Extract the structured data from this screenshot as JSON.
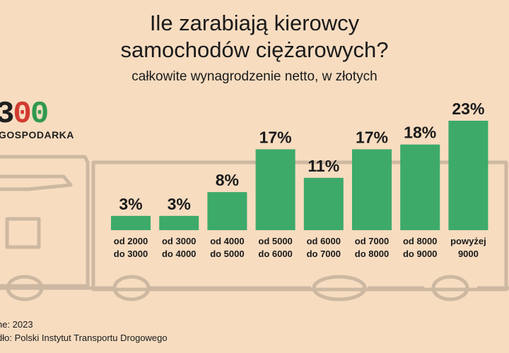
{
  "title_line1": "Ile zarabiają kierowcy",
  "title_line2": "samochodów ciężarowych?",
  "subtitle": "całkowite wynagrodzenie netto, w złotych",
  "logo": {
    "digit1": "3",
    "digit2": "0",
    "digit3": "0",
    "text": "GOSPODARKA"
  },
  "footer": {
    "date_line": "ne: 2023",
    "source_line": "dło: Polski Instytut Transportu Drogowego"
  },
  "colors": {
    "bar": "#3daa6a",
    "background": "#f7dcc0",
    "truck": "#cdb8a2"
  },
  "chart_data": {
    "type": "bar",
    "title": "Ile zarabiają kierowcy samochodów ciężarowych?",
    "subtitle": "całkowite wynagrodzenie netto, w złotych",
    "categories": [
      [
        "od 2000",
        "do 3000"
      ],
      [
        "od 3000",
        "do 4000"
      ],
      [
        "od 4000",
        "do 5000"
      ],
      [
        "od 5000",
        "do 6000"
      ],
      [
        "od 6000",
        "do 7000"
      ],
      [
        "od 7000",
        "do 8000"
      ],
      [
        "od 8000",
        "do 9000"
      ],
      [
        "powyżej",
        "9000"
      ]
    ],
    "values": [
      3,
      3,
      8,
      17,
      11,
      17,
      18,
      23
    ],
    "value_labels": [
      "3%",
      "3%",
      "8%",
      "17%",
      "11%",
      "17%",
      "18%",
      "23%"
    ],
    "unit": "%",
    "ylim": [
      0,
      23
    ],
    "grid": false,
    "legend": false
  }
}
